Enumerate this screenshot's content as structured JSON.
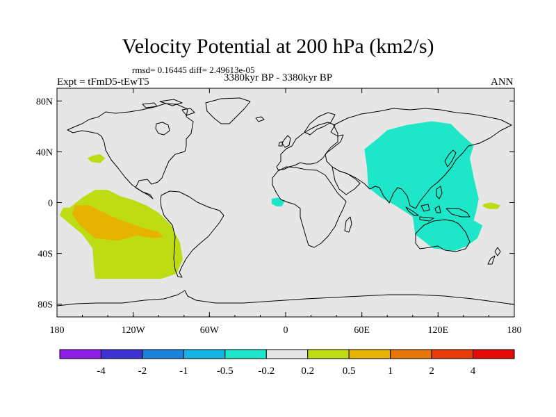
{
  "title": "Velocity Potential at 200 hPa (km2/s)",
  "stats": "rmsd= 0.16445  diff= 2.49613e-05",
  "experiment": "Expt = tFmD5-tEwT5",
  "period": "3380kyr BP - 3380kyr BP",
  "season": "ANN",
  "map": {
    "projection": "cylindrical equidistant",
    "lon_range": [
      -180,
      180
    ],
    "lat_range": [
      -90,
      90
    ],
    "background_color": "#e6e6e6",
    "coastline_color": "#000000",
    "lon_ticks": [
      {
        "value": -180,
        "label": "180"
      },
      {
        "value": -120,
        "label": "120W"
      },
      {
        "value": -60,
        "label": "60W"
      },
      {
        "value": 0,
        "label": "0"
      },
      {
        "value": 60,
        "label": "60E"
      },
      {
        "value": 120,
        "label": "120E"
      },
      {
        "value": 180,
        "label": "180"
      }
    ],
    "lat_ticks": [
      {
        "value": 80,
        "label": "80N"
      },
      {
        "value": 40,
        "label": "40N"
      },
      {
        "value": 0,
        "label": "0"
      },
      {
        "value": -40,
        "label": "40S"
      },
      {
        "value": -80,
        "label": "80S"
      }
    ]
  },
  "colorbar": {
    "colors": [
      "#8c1ee6",
      "#3c32d2",
      "#1e82dc",
      "#14b4e6",
      "#1ee6c8",
      "#e6e6e6",
      "#bedc14",
      "#e6b400",
      "#e6780a",
      "#e63c0a",
      "#e60a0a"
    ],
    "labels": [
      "-4",
      "-2",
      "-1",
      "-0.5",
      "-0.2",
      "0.2",
      "0.5",
      "1",
      "2",
      "4"
    ]
  },
  "contour_fills": [
    {
      "color": "#bedc14",
      "lon_lat": [
        [
          -175,
          -4
        ],
        [
          -170,
          -4
        ],
        [
          -160,
          4
        ],
        [
          -150,
          10
        ],
        [
          -140,
          10
        ],
        [
          -130,
          5
        ],
        [
          -120,
          2
        ],
        [
          -110,
          -2
        ],
        [
          -100,
          -8
        ],
        [
          -90,
          -18
        ],
        [
          -83,
          -32
        ],
        [
          -81,
          -45
        ],
        [
          -86,
          -56
        ],
        [
          -98,
          -60
        ],
        [
          -115,
          -60
        ],
        [
          -130,
          -60
        ],
        [
          -150,
          -60
        ],
        [
          -151,
          -50
        ],
        [
          -152,
          -36
        ],
        [
          -160,
          -25
        ],
        [
          -172,
          -15
        ],
        [
          -178,
          -10
        ]
      ]
    },
    {
      "color": "#e6b400",
      "lon_lat": [
        [
          -166,
          -2
        ],
        [
          -155,
          -2
        ],
        [
          -145,
          -7
        ],
        [
          -132,
          -13
        ],
        [
          -112,
          -20
        ],
        [
          -100,
          -23
        ],
        [
          -96,
          -27
        ],
        [
          -104,
          -28
        ],
        [
          -117,
          -26
        ],
        [
          -132,
          -30
        ],
        [
          -150,
          -28
        ],
        [
          -162,
          -18
        ],
        [
          -168,
          -9
        ]
      ]
    },
    {
      "color": "#bedc14",
      "lon_lat": [
        [
          -152,
          37
        ],
        [
          -146,
          38
        ],
        [
          -142,
          35
        ],
        [
          -146,
          31
        ],
        [
          -153,
          32
        ],
        [
          -156,
          35
        ]
      ]
    },
    {
      "color": "#bedc14",
      "lon_lat": [
        [
          156,
          -1
        ],
        [
          162,
          0
        ],
        [
          169,
          -2
        ],
        [
          167,
          -5
        ],
        [
          160,
          -5
        ],
        [
          155,
          -3
        ]
      ]
    },
    {
      "color": "#1ee6c8",
      "lon_lat": [
        [
          -11,
          3
        ],
        [
          -6,
          4
        ],
        [
          -1,
          1
        ],
        [
          -3,
          -3
        ],
        [
          -7,
          -3
        ],
        [
          -11,
          -1
        ]
      ]
    },
    {
      "color": "#1ee6c8",
      "lon_lat": [
        [
          72,
          50
        ],
        [
          80,
          57
        ],
        [
          95,
          61
        ],
        [
          115,
          64
        ],
        [
          130,
          62
        ],
        [
          138,
          54
        ],
        [
          148,
          45
        ],
        [
          145,
          35
        ],
        [
          148,
          20
        ],
        [
          152,
          3
        ],
        [
          150,
          -7
        ],
        [
          148,
          -14
        ],
        [
          155,
          -18
        ],
        [
          151,
          -28
        ],
        [
          143,
          -34
        ],
        [
          133,
          -38
        ],
        [
          116,
          -36
        ],
        [
          102,
          -25
        ],
        [
          100,
          -11
        ],
        [
          86,
          -2
        ],
        [
          75,
          4
        ],
        [
          65,
          12
        ],
        [
          64,
          28
        ],
        [
          62,
          42
        ]
      ]
    }
  ]
}
